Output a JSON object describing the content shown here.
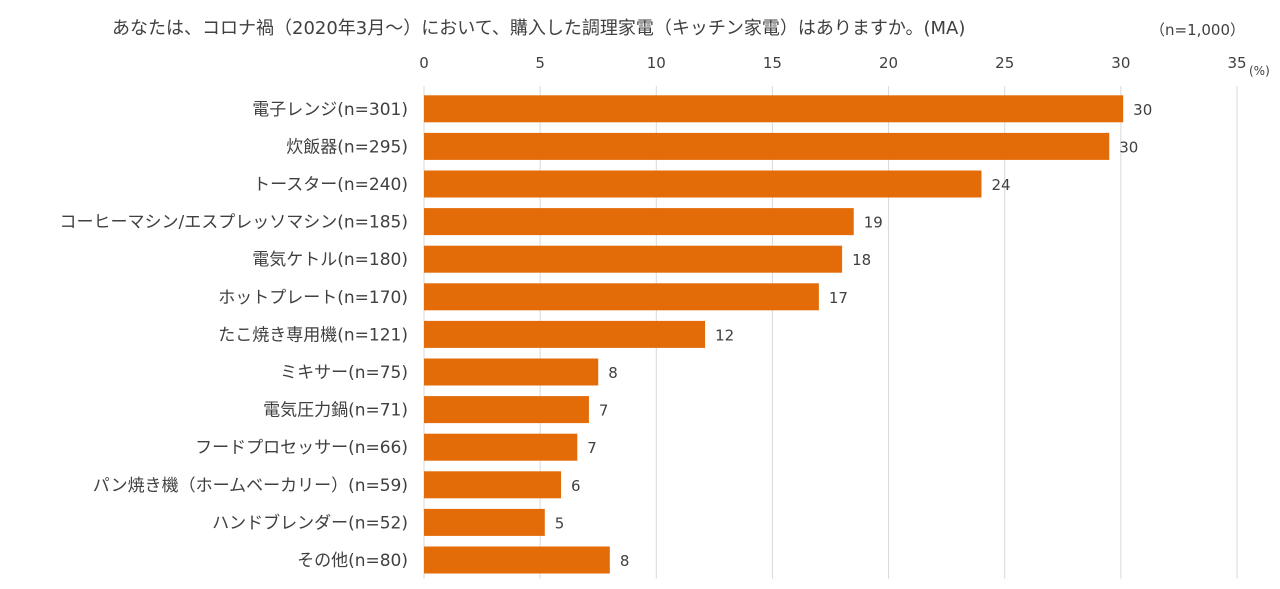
{
  "chart_data": {
    "type": "bar",
    "orientation": "horizontal",
    "title": "あなたは、コロナ禍（2020年3月～）において、購入した調理家電（キッチン家電）はありますか。(MA)",
    "note": "（n=1,000）",
    "x_unit": "(%)",
    "xlim": [
      0,
      35
    ],
    "xticks": [
      0,
      5,
      10,
      15,
      20,
      25,
      30,
      35
    ],
    "grid": true,
    "bar_color": "#E36C09",
    "categories": [
      "電子レンジ(n=301)",
      "炊飯器(n=295)",
      "トースター(n=240)",
      "コーヒーマシン/エスプレッソマシン(n=185)",
      "電気ケトル(n=180)",
      "ホットプレート(n=170)",
      "たこ焼き専用機(n=121)",
      "ミキサー(n=75)",
      "電気圧力鍋(n=71)",
      "フードプロセッサー(n=66)",
      "パン焼き機（ホームベーカリー）(n=59)",
      "ハンドブレンダー(n=52)",
      "その他(n=80)"
    ],
    "values": [
      30.1,
      29.5,
      24.0,
      18.5,
      18.0,
      17.0,
      12.1,
      7.5,
      7.1,
      6.6,
      5.9,
      5.2,
      8.0
    ],
    "data_labels": [
      "30",
      "30",
      "24",
      "19",
      "18",
      "17",
      "12",
      "8",
      "7",
      "7",
      "6",
      "5",
      "8"
    ]
  }
}
